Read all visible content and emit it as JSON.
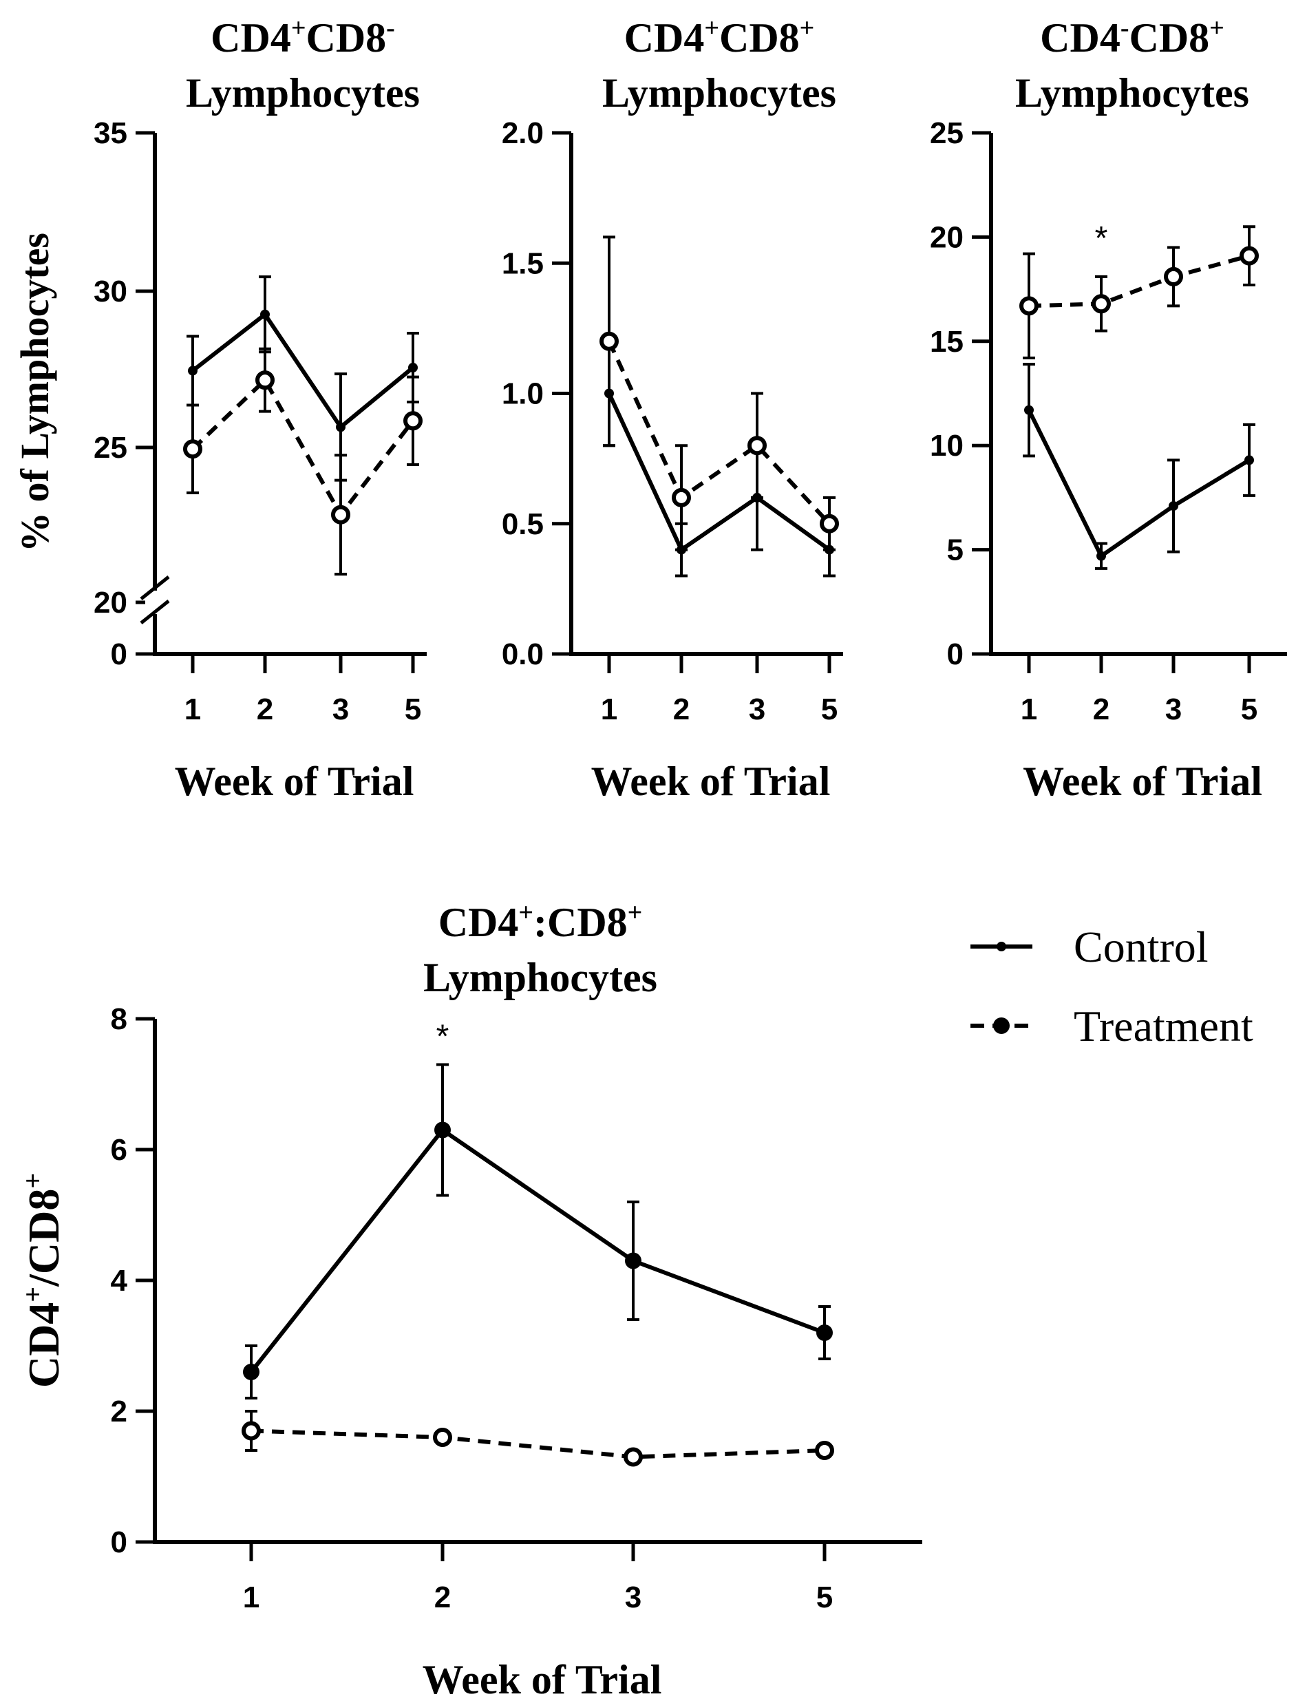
{
  "chart_data": [
    {
      "type": "line",
      "id": "p1",
      "title_line1": "CD4",
      "title_sup1": "+",
      "title_mid": "CD8",
      "title_sup2": "-",
      "title_line2": "Lymphocytes",
      "ylabel": "% of  Lymphocytes",
      "xlabel": "Week of Trial",
      "categories": [
        "1",
        "2",
        "3",
        "5"
      ],
      "yticks": [
        "0",
        "20",
        "25",
        "30",
        "35"
      ],
      "ylim": [
        20,
        35
      ],
      "axis_break": true,
      "series": [
        {
          "name": "Control",
          "values": [
            27.4,
            29.2,
            25.6,
            27.5
          ],
          "errors": [
            1.1,
            1.2,
            1.7,
            1.1
          ]
        },
        {
          "name": "Treatment",
          "values": [
            24.9,
            27.1,
            22.8,
            25.8
          ],
          "errors": [
            1.4,
            1.0,
            1.9,
            1.4
          ]
        }
      ],
      "annotations": []
    },
    {
      "type": "line",
      "id": "p2",
      "title_line1": "CD4",
      "title_sup1": "+",
      "title_mid": "CD8",
      "title_sup2": "+",
      "title_line2": "Lymphocytes",
      "xlabel": "Week of Trial",
      "categories": [
        "1",
        "2",
        "3",
        "5"
      ],
      "yticks": [
        "0.0",
        "0.5",
        "1.0",
        "1.5",
        "2.0"
      ],
      "ylim": [
        0,
        2
      ],
      "series": [
        {
          "name": "Control",
          "values": [
            1.0,
            0.4,
            0.6,
            0.4
          ],
          "errors": [
            0.2,
            0.1,
            0.2,
            0.1
          ]
        },
        {
          "name": "Treatment",
          "values": [
            1.2,
            0.6,
            0.8,
            0.5
          ],
          "errors": [
            0.4,
            0.2,
            0.2,
            0.1
          ]
        }
      ],
      "annotations": []
    },
    {
      "type": "line",
      "id": "p3",
      "title_line1": "CD4",
      "title_sup1": "-",
      "title_mid": "CD8",
      "title_sup2": "+",
      "title_line2": "Lymphocytes",
      "xlabel": "Week of Trial",
      "categories": [
        "1",
        "2",
        "3",
        "5"
      ],
      "yticks": [
        "0",
        "5",
        "10",
        "15",
        "20",
        "25"
      ],
      "ylim": [
        0,
        25
      ],
      "series": [
        {
          "name": "Control",
          "values": [
            11.7,
            4.7,
            7.1,
            9.3
          ],
          "errors": [
            2.2,
            0.6,
            2.2,
            1.7
          ]
        },
        {
          "name": "Treatment",
          "values": [
            16.7,
            16.8,
            18.1,
            19.1
          ],
          "errors": [
            2.5,
            1.3,
            1.4,
            1.4
          ]
        }
      ],
      "annotations": [
        {
          "text": "*",
          "category": "2"
        }
      ]
    },
    {
      "type": "line",
      "id": "p4",
      "title_line1": "CD4",
      "title_sup1": "+",
      "title_mid": ":CD8",
      "title_sup2": "+",
      "title_line2": "Lymphocytes",
      "ylabel_parts": [
        "CD4",
        "+",
        "/CD8",
        "+"
      ],
      "xlabel": "Week of Trial",
      "categories": [
        "1",
        "2",
        "3",
        "5"
      ],
      "yticks": [
        "0",
        "2",
        "4",
        "6",
        "8"
      ],
      "ylim": [
        0,
        8
      ],
      "series": [
        {
          "name": "Control",
          "values": [
            2.6,
            6.3,
            4.3,
            3.2
          ],
          "errors": [
            0.4,
            1.0,
            0.9,
            0.4
          ]
        },
        {
          "name": "Treatment",
          "values": [
            1.7,
            1.6,
            1.3,
            1.4
          ],
          "errors": [
            0.3,
            0.0,
            0.0,
            0.0
          ]
        }
      ],
      "annotations": [
        {
          "text": "*",
          "category": "2"
        }
      ]
    }
  ],
  "legend": {
    "control_label": "Control",
    "treatment_label": "Treatment"
  }
}
